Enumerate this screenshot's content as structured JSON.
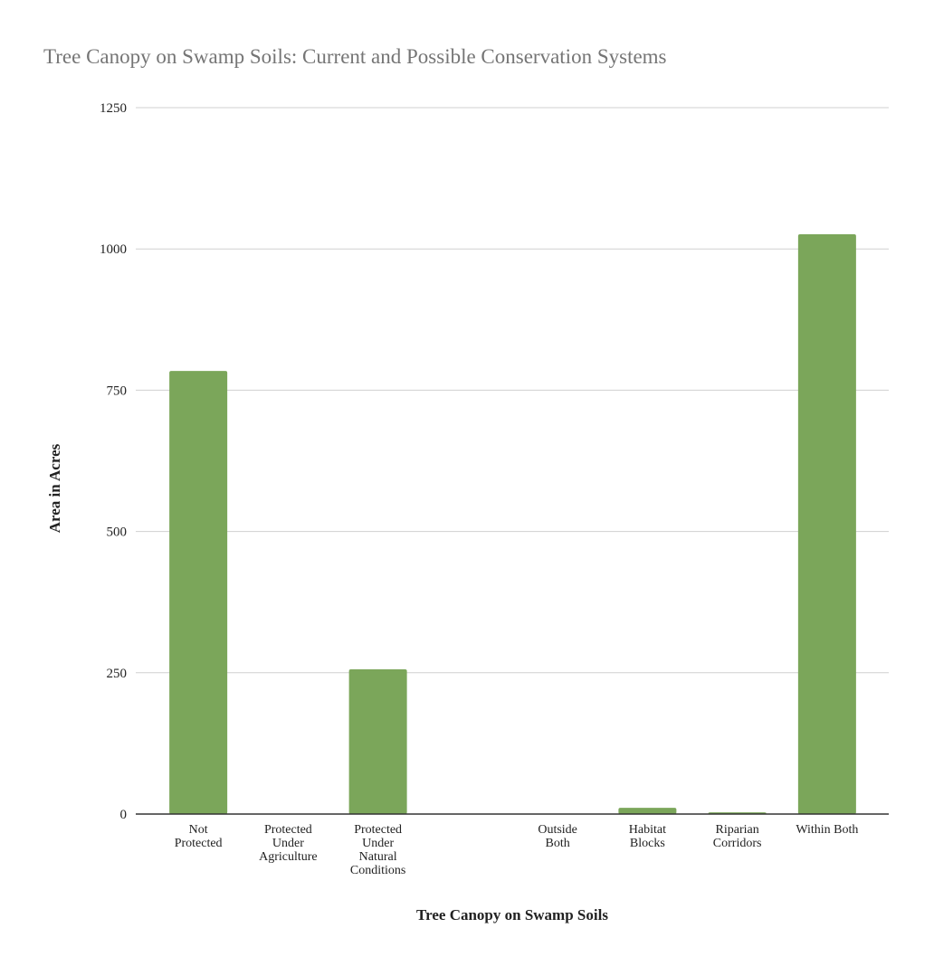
{
  "chart_data": {
    "type": "bar",
    "title": "Tree Canopy on Swamp Soils: Current and Possible Conservation Systems",
    "x_label": "Tree Canopy on Swamp Soils",
    "y_label": "Area in Acres",
    "categories": [
      "Not\nProtected",
      "Protected\nUnder\nAgriculture",
      "Protected\nUnder\nNatural\nConditions",
      null,
      "Outside\nBoth",
      "Habitat\nBlocks",
      "Riparian\nCorridors",
      "Within Both"
    ],
    "values": [
      784,
      0,
      256,
      null,
      0,
      11,
      3,
      1026
    ],
    "color": "#7ba65a",
    "ylim": [
      0,
      1250
    ],
    "yticks": [
      0,
      250,
      500,
      750,
      1000,
      1250
    ],
    "grid": true
  }
}
